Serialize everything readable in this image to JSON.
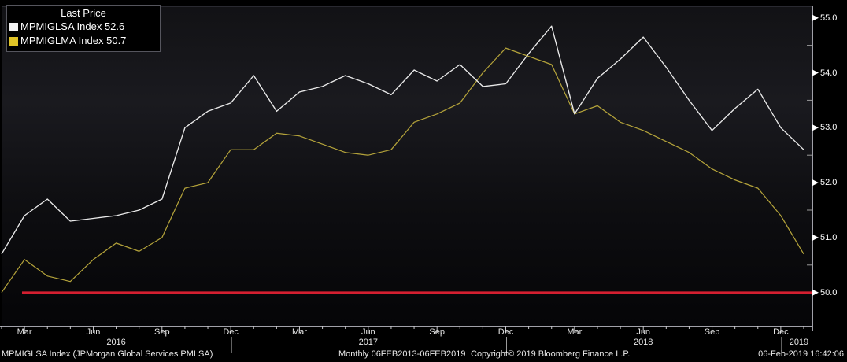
{
  "legend": {
    "title": "Last Price",
    "series": [
      {
        "swatch_icon": "white-square",
        "name": "MPMIGLSA Index",
        "value": "52.6"
      },
      {
        "swatch_icon": "yellow-square",
        "name": "MPMIGLMA Index",
        "value": "50.7"
      }
    ]
  },
  "y_axis": {
    "side": "right",
    "major_ticks": [
      {
        "label": "55.0",
        "value": 55.0
      },
      {
        "label": "54.0",
        "value": 54.0
      },
      {
        "label": "53.0",
        "value": 53.0
      },
      {
        "label": "52.0",
        "value": 52.0
      },
      {
        "label": "51.0",
        "value": 51.0
      },
      {
        "label": "50.0",
        "value": 50.0
      }
    ],
    "minor_tick_values": [
      54.5,
      53.5,
      52.5,
      51.5,
      50.5
    ]
  },
  "x_axis": {
    "month_ticks": [
      {
        "i": 1,
        "label": "Mar"
      },
      {
        "i": 4,
        "label": "Jun"
      },
      {
        "i": 7,
        "label": "Sep"
      },
      {
        "i": 10,
        "label": "Dec"
      },
      {
        "i": 13,
        "label": "Mar"
      },
      {
        "i": 16,
        "label": "Jun"
      },
      {
        "i": 19,
        "label": "Sep"
      },
      {
        "i": 22,
        "label": "Dec"
      },
      {
        "i": 25,
        "label": "Mar"
      },
      {
        "i": 28,
        "label": "Jun"
      },
      {
        "i": 31,
        "label": "Sep"
      },
      {
        "i": 34,
        "label": "Dec"
      }
    ],
    "years": [
      {
        "label": "2016",
        "from": 0,
        "to": 10
      },
      {
        "label": "2017",
        "from": 10,
        "to": 22
      },
      {
        "label": "2018",
        "from": 22,
        "to": 34
      },
      {
        "label": "2019",
        "from": 34,
        "to": 36.5
      }
    ],
    "separator_indices": [
      10,
      22,
      34
    ]
  },
  "footer": {
    "description": "MPMIGLSA Index (JPMorgan Global Services PMI SA)",
    "periodicity": "Monthly 06FEB2013-06FEB2019",
    "copyright": "Copyright© 2019 Bloomberg Finance L.P.",
    "timestamp": "06-Feb-2019 16:42:06"
  },
  "colors": {
    "series1_line": "#e9e9e9",
    "series1_swatch": "#f2f2f2",
    "series2_line": "#b3a23a",
    "series2_swatch": "#e0c427",
    "reference_line": "#d41f30",
    "axis_strong": "#a0a0a8",
    "axis_dim": "#40404a",
    "tick": "#c8c8cc",
    "minor_tick": "#9a9a9a",
    "bg_top": "#121215",
    "bg_mid": "#1a1a1f",
    "bg_low": "#0e0e11",
    "bg_bottom": "#050507"
  },
  "chart_data": {
    "type": "line",
    "title": "Last Price",
    "legend_position": "top-left",
    "grid": false,
    "ylim": [
      49.4,
      55.2
    ],
    "y_ticks": [
      50.0,
      51.0,
      52.0,
      53.0,
      54.0,
      55.0
    ],
    "reference_line": {
      "value": 50.0
    },
    "x": [
      "Feb 2016",
      "Mar 2016",
      "Apr 2016",
      "May 2016",
      "Jun 2016",
      "Jul 2016",
      "Aug 2016",
      "Sep 2016",
      "Oct 2016",
      "Nov 2016",
      "Dec 2016",
      "Jan 2017",
      "Feb 2017",
      "Mar 2017",
      "Apr 2017",
      "May 2017",
      "Jun 2017",
      "Jul 2017",
      "Aug 2017",
      "Sep 2017",
      "Oct 2017",
      "Nov 2017",
      "Dec 2017",
      "Jan 2018",
      "Feb 2018",
      "Mar 2018",
      "Apr 2018",
      "May 2018",
      "Jun 2018",
      "Jul 2018",
      "Aug 2018",
      "Sep 2018",
      "Oct 2018",
      "Nov 2018",
      "Dec 2018",
      "Jan 2019"
    ],
    "series": [
      {
        "name": "MPMIGLSA Index",
        "last_price": 52.6,
        "values": [
          50.7,
          51.4,
          51.7,
          51.3,
          51.35,
          51.4,
          51.5,
          51.7,
          53.0,
          53.3,
          53.45,
          53.95,
          53.3,
          53.65,
          53.75,
          53.95,
          53.8,
          53.6,
          54.05,
          53.85,
          54.15,
          53.75,
          53.8,
          54.35,
          54.85,
          53.25,
          53.9,
          54.25,
          54.65,
          54.1,
          53.5,
          52.95,
          53.35,
          53.7,
          53.0,
          52.6
        ]
      },
      {
        "name": "MPMIGLMA Index",
        "last_price": 50.7,
        "values": [
          50.0,
          50.6,
          50.3,
          50.2,
          50.6,
          50.9,
          50.75,
          51.0,
          51.9,
          52.0,
          52.6,
          52.6,
          52.9,
          52.85,
          52.7,
          52.55,
          52.5,
          52.6,
          53.1,
          53.25,
          53.45,
          54.0,
          54.45,
          54.3,
          54.15,
          53.25,
          53.4,
          53.1,
          52.95,
          52.75,
          52.55,
          52.25,
          52.05,
          51.9,
          51.4,
          50.7
        ]
      }
    ]
  }
}
